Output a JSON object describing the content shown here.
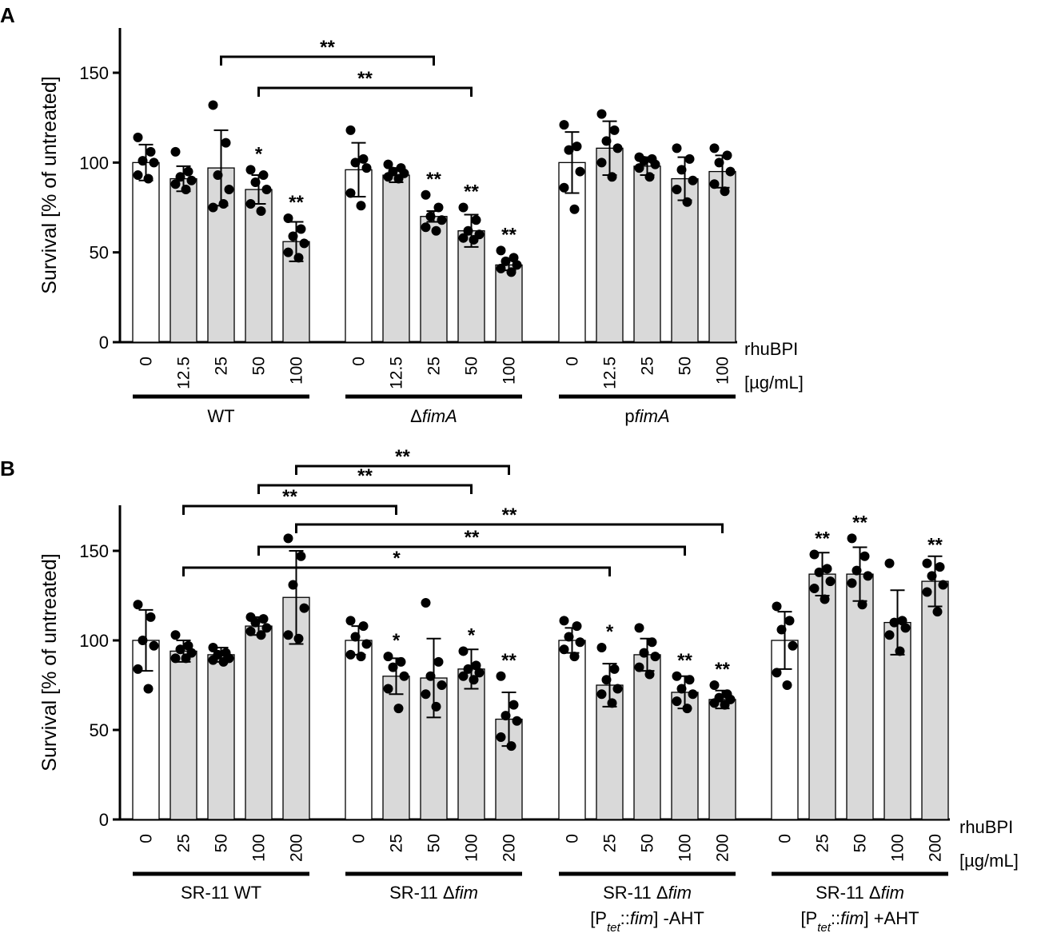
{
  "chart_data": [
    {
      "panel": "A",
      "type": "bar",
      "ylabel": "Survival [% of untreated]",
      "ylim": [
        0,
        175
      ],
      "yticks": [
        0,
        50,
        100,
        150
      ],
      "dose_label": [
        "rhuBPI",
        "[µg/mL]"
      ],
      "groups": [
        {
          "name_parts": [
            {
              "t": "WT",
              "i": false
            }
          ],
          "categories": [
            "0",
            "12.5",
            "25",
            "50",
            "100"
          ],
          "values": [
            100,
            91,
            97,
            85,
            56
          ],
          "errors": [
            10,
            7,
            21,
            8,
            11
          ],
          "points": [
            [
              114,
              106,
              101,
              100,
              93,
              91
            ],
            [
              106,
              95,
              92,
              90,
              88,
              85
            ],
            [
              132,
              111,
              93,
              85,
              75,
              77
            ],
            [
              96,
              93,
              89,
              85,
              77,
              73
            ],
            [
              69,
              63,
              59,
              55,
              50,
              47
            ]
          ],
          "sig": [
            "",
            "",
            "",
            "*",
            "**"
          ]
        },
        {
          "name_parts": [
            {
              "t": "Δ",
              "i": false
            },
            {
              "t": "fimA",
              "i": true
            }
          ],
          "categories": [
            "0",
            "12.5",
            "25",
            "50",
            "100"
          ],
          "values": [
            96,
            93,
            70,
            62,
            43
          ],
          "errors": [
            15,
            4,
            3,
            9,
            3
          ],
          "points": [
            [
              118,
              102,
              100,
              97,
              83,
              76
            ],
            [
              99,
              97,
              95,
              94,
              92,
              91
            ],
            [
              82,
              75,
              70,
              68,
              64,
              62
            ],
            [
              75,
              68,
              62,
              60,
              58,
              57
            ],
            [
              51,
              47,
              45,
              43,
              41,
              39
            ]
          ],
          "sig": [
            "",
            "",
            "**",
            "**",
            "**"
          ]
        },
        {
          "name_parts": [
            {
              "t": "p",
              "i": false
            },
            {
              "t": "fimA",
              "i": true
            }
          ],
          "categories": [
            "0",
            "12.5",
            "25",
            "50",
            "100"
          ],
          "values": [
            100,
            108,
            98,
            91,
            95
          ],
          "errors": [
            17,
            15,
            5,
            12,
            9
          ],
          "points": [
            [
              121,
              109,
              107,
              95,
              86,
              74
            ],
            [
              127,
              118,
              112,
              108,
              100,
              92
            ],
            [
              103,
              102,
              101,
              99,
              97,
              92
            ],
            [
              108,
              102,
              96,
              90,
              85,
              78
            ],
            [
              108,
              104,
              100,
              95,
              88,
              84
            ]
          ],
          "sig": [
            "",
            "",
            "",
            "",
            ""
          ]
        }
      ],
      "brackets": [
        {
          "from": [
            0,
            2
          ],
          "to": [
            1,
            2
          ],
          "label": "**"
        },
        {
          "from": [
            0,
            3
          ],
          "to": [
            1,
            3
          ],
          "label": "**"
        }
      ]
    },
    {
      "panel": "B",
      "type": "bar",
      "ylabel": "Survival [% of untreated]",
      "ylim": [
        0,
        175
      ],
      "yticks": [
        0,
        50,
        100,
        150
      ],
      "dose_label": [
        "rhuBPI",
        "[µg/mL]"
      ],
      "groups": [
        {
          "name_parts": [
            {
              "t": "SR-11 WT",
              "i": false
            }
          ],
          "categories": [
            "0",
            "25",
            "50",
            "100",
            "200"
          ],
          "values": [
            100,
            94,
            92,
            108,
            124
          ],
          "errors": [
            17,
            6,
            4,
            5,
            26
          ],
          "points": [
            [
              120,
              113,
              100,
              97,
              84,
              73
            ],
            [
              103,
              97,
              95,
              93,
              90,
              90
            ],
            [
              96,
              93,
              92,
              90,
              89,
              88
            ],
            [
              113,
              112,
              110,
              107,
              105,
              103
            ],
            [
              157,
              147,
              131,
              118,
              103,
              101
            ]
          ],
          "sig": [
            "",
            "",
            "",
            "",
            ""
          ]
        },
        {
          "name_parts": [
            {
              "t": "SR-11 Δ",
              "i": false
            },
            {
              "t": "fim",
              "i": true
            }
          ],
          "categories": [
            "0",
            "25",
            "50",
            "100",
            "200"
          ],
          "values": [
            100,
            80,
            79,
            84,
            56
          ],
          "errors": [
            8,
            10,
            22,
            11,
            15
          ],
          "points": [
            [
              111,
              108,
              102,
              98,
              92,
              91
            ],
            [
              91,
              88,
              85,
              80,
              73,
              62
            ],
            [
              121,
              88,
              80,
              75,
              70,
              63
            ],
            [
              94,
              86,
              84,
              82,
              80,
              78
            ],
            [
              80,
              64,
              58,
              55,
              46,
              41
            ]
          ],
          "sig": [
            "",
            "*",
            "",
            "*",
            "**"
          ]
        },
        {
          "name_parts": [
            {
              "t": "SR-11 Δ",
              "i": false
            },
            {
              "t": "fim",
              "i": true
            },
            {
              "t": "[P",
              "i": false,
              "nl": true
            },
            {
              "t": "tet",
              "i": true,
              "sub": true
            },
            {
              "t": "::",
              "i": false
            },
            {
              "t": "fim",
              "i": true
            },
            {
              "t": "] -AHT",
              "i": false
            }
          ],
          "categories": [
            "0",
            "25",
            "50",
            "100",
            "200"
          ],
          "values": [
            100,
            75,
            92,
            71,
            67
          ],
          "errors": [
            7,
            12,
            9,
            9,
            5
          ],
          "points": [
            [
              111,
              108,
              102,
              99,
              95,
              91
            ],
            [
              96,
              84,
              78,
              73,
              70,
              65
            ],
            [
              107,
              99,
              93,
              91,
              85,
              81
            ],
            [
              80,
              78,
              73,
              70,
              66,
              62
            ],
            [
              75,
              70,
              68,
              67,
              65,
              64
            ]
          ],
          "sig": [
            "",
            "*",
            "",
            "**",
            "**"
          ]
        },
        {
          "name_parts": [
            {
              "t": "SR-11 Δ",
              "i": false
            },
            {
              "t": "fim",
              "i": true
            },
            {
              "t": "[P",
              "i": false,
              "nl": true
            },
            {
              "t": "tet",
              "i": true,
              "sub": true
            },
            {
              "t": "::",
              "i": false
            },
            {
              "t": "fim",
              "i": true
            },
            {
              "t": "] +AHT",
              "i": false
            }
          ],
          "categories": [
            "0",
            "25",
            "50",
            "100",
            "200"
          ],
          "values": [
            100,
            137,
            137,
            110,
            133
          ],
          "errors": [
            16,
            12,
            15,
            18,
            14
          ],
          "points": [
            [
              119,
              111,
              106,
              97,
              82,
              75
            ],
            [
              148,
              140,
              138,
              133,
              129,
              123
            ],
            [
              157,
              147,
              139,
              136,
              132,
              120
            ],
            [
              143,
              111,
              110,
              107,
              103,
              94
            ],
            [
              143,
              141,
              136,
              131,
              127,
              116
            ]
          ],
          "sig": [
            "",
            "**",
            "**",
            "",
            "**"
          ]
        }
      ],
      "brackets": [
        {
          "from": [
            0,
            4
          ],
          "to": [
            1,
            4
          ],
          "label": "**"
        },
        {
          "from": [
            0,
            3
          ],
          "to": [
            1,
            3
          ],
          "label": "**"
        },
        {
          "from": [
            0,
            1
          ],
          "to": [
            1,
            1
          ],
          "label": "**"
        },
        {
          "from": [
            0,
            4
          ],
          "to": [
            2,
            4
          ],
          "label": "**"
        },
        {
          "from": [
            0,
            3
          ],
          "to": [
            2,
            3
          ],
          "label": "**"
        },
        {
          "from": [
            0,
            1
          ],
          "to": [
            2,
            1
          ],
          "label": "*"
        }
      ]
    }
  ]
}
